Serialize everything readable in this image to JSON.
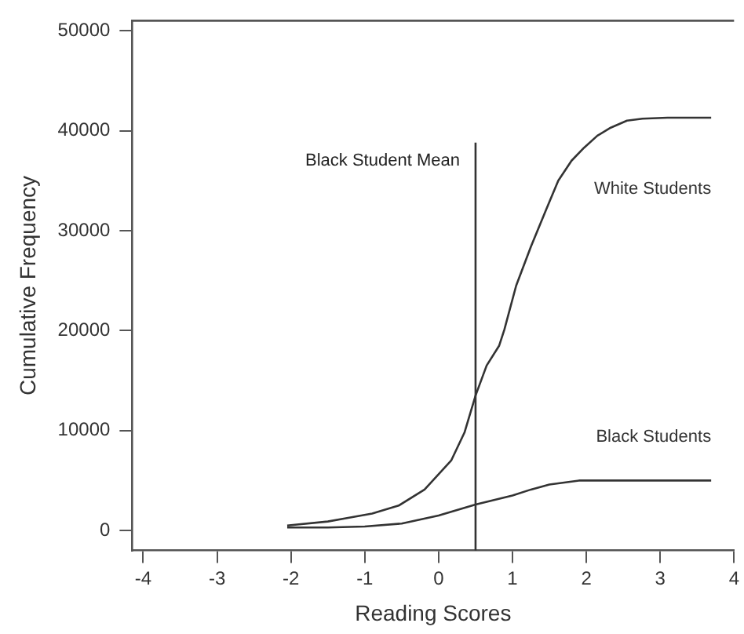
{
  "chart_data": {
    "type": "line",
    "xlabel": "Reading Scores",
    "ylabel": "Cumulative Frequency",
    "xlim": [
      -4.15,
      4
    ],
    "ylim": [
      -2000,
      51000
    ],
    "xticks": [
      -4,
      -3,
      -2,
      -1,
      0,
      1,
      2,
      3,
      4
    ],
    "yticks": [
      0,
      10000,
      20000,
      30000,
      40000,
      50000
    ],
    "grid": false,
    "legend": false,
    "marker": "none",
    "line_style": "solid",
    "series": [
      {
        "name": "White Students",
        "color": "#333333",
        "x": [
          -2.05,
          -1.5,
          -1.27,
          -0.9,
          -0.54,
          -0.19,
          0.17,
          0.35,
          0.5,
          0.65,
          0.82,
          0.89,
          1.05,
          1.25,
          1.45,
          1.62,
          1.8,
          1.97,
          2.15,
          2.33,
          2.55,
          2.76,
          3.1,
          3.69
        ],
        "values": [
          500,
          900,
          1200,
          1700,
          2500,
          4100,
          7000,
          9800,
          13500,
          16500,
          18500,
          20100,
          24500,
          28400,
          32000,
          35000,
          37000,
          38300,
          39500,
          40300,
          41000,
          41200,
          41300,
          41300
        ]
      },
      {
        "name": "Black Students",
        "color": "#333333",
        "x": [
          -2.05,
          -1.5,
          -1,
          -0.5,
          0,
          0.5,
          1,
          1.25,
          1.5,
          1.9,
          2.5,
          3.69
        ],
        "values": [
          300,
          300,
          400,
          700,
          1500,
          2600,
          3500,
          4100,
          4600,
          5000,
          5000,
          5000
        ]
      }
    ],
    "ref_lines": [
      {
        "axis": "x",
        "value": 0.5,
        "label": "Black Student Mean",
        "color": "#333333"
      }
    ]
  }
}
